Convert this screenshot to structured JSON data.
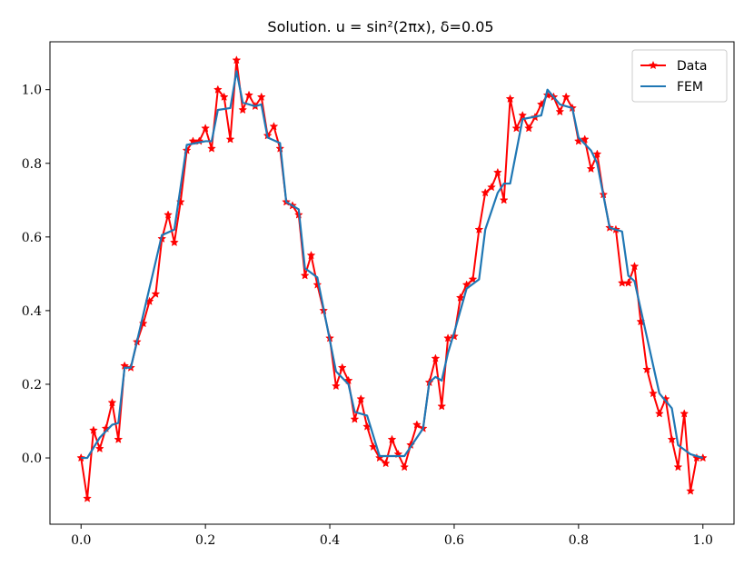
{
  "chart_data": {
    "type": "line",
    "title": "Solution. u = sin²(2πx), δ=0.05",
    "xlabel": "",
    "ylabel": "",
    "xlim": [
      -0.05,
      1.05
    ],
    "ylim": [
      -0.18,
      1.13
    ],
    "x_ticks": [
      0.0,
      0.2,
      0.4,
      0.6,
      0.8,
      1.0
    ],
    "x_tick_labels": [
      "0.0",
      "0.2",
      "0.4",
      "0.6",
      "0.8",
      "1.0"
    ],
    "y_ticks": [
      0.0,
      0.2,
      0.4,
      0.6,
      0.8,
      1.0
    ],
    "y_tick_labels": [
      "0.0",
      "0.2",
      "0.4",
      "0.6",
      "0.8",
      "1.0"
    ],
    "grid": false,
    "legend_position": "top-right",
    "series": [
      {
        "name": "Data",
        "color": "#ff0000",
        "marker": "star",
        "x": [
          0.0,
          0.01,
          0.02,
          0.03,
          0.04,
          0.05,
          0.06,
          0.07,
          0.08,
          0.09,
          0.1,
          0.11,
          0.12,
          0.13,
          0.14,
          0.15,
          0.16,
          0.17,
          0.18,
          0.19,
          0.2,
          0.21,
          0.22,
          0.23,
          0.24,
          0.25,
          0.26,
          0.27,
          0.28,
          0.29,
          0.3,
          0.31,
          0.32,
          0.33,
          0.34,
          0.35,
          0.36,
          0.37,
          0.38,
          0.39,
          0.4,
          0.41,
          0.42,
          0.43,
          0.44,
          0.45,
          0.46,
          0.47,
          0.48,
          0.49,
          0.5,
          0.51,
          0.52,
          0.53,
          0.54,
          0.55,
          0.56,
          0.57,
          0.58,
          0.59,
          0.6,
          0.61,
          0.62,
          0.63,
          0.64,
          0.65,
          0.66,
          0.67,
          0.68,
          0.69,
          0.7,
          0.71,
          0.72,
          0.73,
          0.74,
          0.75,
          0.76,
          0.77,
          0.78,
          0.79,
          0.8,
          0.81,
          0.82,
          0.83,
          0.84,
          0.85,
          0.86,
          0.87,
          0.88,
          0.89,
          0.9,
          0.91,
          0.92,
          0.93,
          0.94,
          0.95,
          0.96,
          0.97,
          0.98,
          0.99,
          1.0
        ],
        "y": [
          0.0,
          -0.11,
          0.075,
          0.025,
          0.08,
          0.15,
          0.05,
          0.25,
          0.245,
          0.315,
          0.365,
          0.425,
          0.445,
          0.595,
          0.66,
          0.585,
          0.695,
          0.835,
          0.86,
          0.86,
          0.895,
          0.84,
          1.0,
          0.98,
          0.865,
          1.08,
          0.945,
          0.985,
          0.955,
          0.98,
          0.875,
          0.9,
          0.84,
          0.695,
          0.685,
          0.66,
          0.495,
          0.55,
          0.47,
          0.4,
          0.325,
          0.195,
          0.245,
          0.21,
          0.105,
          0.16,
          0.085,
          0.03,
          0.0,
          -0.015,
          0.05,
          0.01,
          -0.025,
          0.035,
          0.09,
          0.08,
          0.205,
          0.27,
          0.14,
          0.325,
          0.33,
          0.435,
          0.47,
          0.485,
          0.62,
          0.72,
          0.735,
          0.775,
          0.7,
          0.975,
          0.895,
          0.93,
          0.895,
          0.925,
          0.96,
          0.985,
          0.98,
          0.94,
          0.98,
          0.95,
          0.86,
          0.865,
          0.785,
          0.825,
          0.715,
          0.625,
          0.62,
          0.475,
          0.475,
          0.52,
          0.37,
          0.24,
          0.175,
          0.12,
          0.16,
          0.05,
          -0.025,
          0.12,
          -0.09,
          0.0,
          0.0
        ]
      },
      {
        "name": "FEM",
        "color": "#1f77b4",
        "x": [
          0.0,
          0.01,
          0.03,
          0.05,
          0.06,
          0.07,
          0.08,
          0.13,
          0.15,
          0.17,
          0.2,
          0.21,
          0.22,
          0.24,
          0.25,
          0.26,
          0.28,
          0.29,
          0.3,
          0.32,
          0.33,
          0.35,
          0.36,
          0.38,
          0.41,
          0.43,
          0.44,
          0.46,
          0.48,
          0.52,
          0.55,
          0.56,
          0.57,
          0.58,
          0.59,
          0.6,
          0.62,
          0.64,
          0.65,
          0.67,
          0.68,
          0.69,
          0.71,
          0.74,
          0.75,
          0.77,
          0.79,
          0.8,
          0.82,
          0.83,
          0.85,
          0.87,
          0.88,
          0.89,
          0.93,
          0.95,
          0.96,
          0.98,
          1.0
        ],
        "y": [
          0.0,
          0.0,
          0.055,
          0.09,
          0.095,
          0.245,
          0.245,
          0.605,
          0.62,
          0.85,
          0.86,
          0.86,
          0.945,
          0.95,
          1.05,
          0.965,
          0.955,
          0.96,
          0.87,
          0.855,
          0.695,
          0.675,
          0.515,
          0.49,
          0.235,
          0.2,
          0.125,
          0.115,
          0.005,
          0.005,
          0.08,
          0.205,
          0.22,
          0.21,
          0.285,
          0.34,
          0.46,
          0.485,
          0.62,
          0.72,
          0.745,
          0.745,
          0.92,
          0.93,
          1.0,
          0.96,
          0.95,
          0.87,
          0.835,
          0.8,
          0.625,
          0.615,
          0.495,
          0.48,
          0.175,
          0.135,
          0.035,
          0.01,
          0.0
        ]
      }
    ]
  }
}
